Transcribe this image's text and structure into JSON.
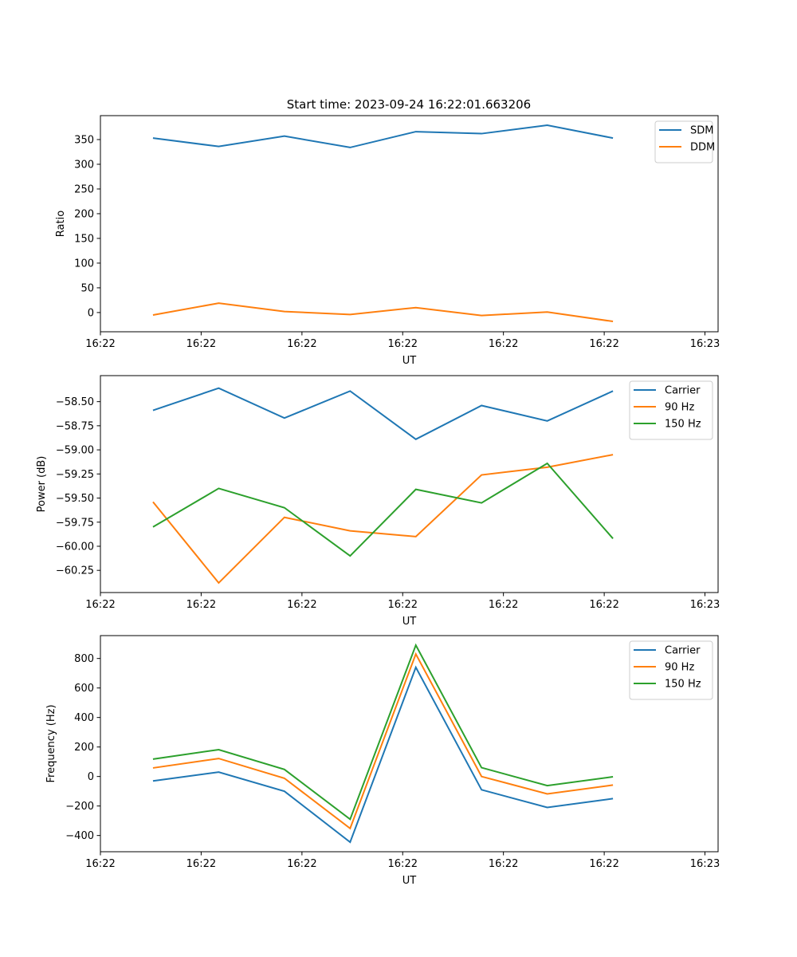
{
  "figure": {
    "title": "Start time: 2023-09-24 16:22:01.663206"
  },
  "chart_data": [
    {
      "type": "line",
      "title": "Start time: 2023-09-24 16:22:01.663206",
      "xlabel": "UT",
      "ylabel": "Ratio",
      "x": [
        1,
        2,
        3,
        4,
        5,
        6,
        7,
        8
      ],
      "xlim": [
        0.2,
        9.6
      ],
      "xticks": [
        0.2,
        1.733,
        3.267,
        4.8,
        6.333,
        7.867,
        9.4
      ],
      "xtick_labels": [
        "16:22",
        "16:22",
        "16:22",
        "16:22",
        "16:22",
        "16:22",
        "16:23"
      ],
      "ylim": [
        -38.9,
        398.4
      ],
      "yticks": [
        0,
        50,
        100,
        150,
        200,
        250,
        300,
        350
      ],
      "ytick_labels": [
        "0",
        "50",
        "100",
        "150",
        "200",
        "250",
        "300",
        "350"
      ],
      "legend": "top-right",
      "series": [
        {
          "name": "SDM",
          "color": "#1f77b4",
          "values": [
            353,
            336,
            357,
            334,
            366,
            362,
            379,
            353
          ]
        },
        {
          "name": "DDM",
          "color": "#ff7f0e",
          "values": [
            -5,
            19,
            2,
            -4,
            10,
            -6,
            1,
            -18
          ]
        }
      ]
    },
    {
      "type": "line",
      "title": "",
      "xlabel": "UT",
      "ylabel": "Power (dB)",
      "x": [
        1,
        2,
        3,
        4,
        5,
        6,
        7,
        8
      ],
      "xlim": [
        0.2,
        9.6
      ],
      "xticks": [
        0.2,
        1.733,
        3.267,
        4.8,
        6.333,
        7.867,
        9.4
      ],
      "xtick_labels": [
        "16:22",
        "16:22",
        "16:22",
        "16:22",
        "16:22",
        "16:22",
        "16:23"
      ],
      "ylim": [
        -60.48,
        -58.23
      ],
      "yticks": [
        -60.25,
        -60.0,
        -59.75,
        -59.5,
        -59.25,
        -59.0,
        -58.75,
        -58.5
      ],
      "ytick_labels": [
        "−60.25",
        "−60.00",
        "−59.75",
        "−59.50",
        "−59.25",
        "−59.00",
        "−58.75",
        "−58.50"
      ],
      "legend": "top-right",
      "series": [
        {
          "name": "Carrier",
          "color": "#1f77b4",
          "values": [
            -58.59,
            -58.36,
            -58.67,
            -58.39,
            -58.89,
            -58.54,
            -58.7,
            -58.39
          ]
        },
        {
          "name": "90 Hz",
          "color": "#ff7f0e",
          "values": [
            -59.54,
            -60.38,
            -59.7,
            -59.84,
            -59.9,
            -59.26,
            -59.18,
            -59.05
          ]
        },
        {
          "name": "150 Hz",
          "color": "#2ca02c",
          "values": [
            -59.8,
            -59.4,
            -59.6,
            -60.1,
            -59.41,
            -59.55,
            -59.14,
            -59.92
          ]
        }
      ]
    },
    {
      "type": "line",
      "title": "",
      "xlabel": "UT",
      "ylabel": "Frequency (Hz)",
      "x": [
        1,
        2,
        3,
        4,
        5,
        6,
        7,
        8
      ],
      "xlim": [
        0.2,
        9.6
      ],
      "xticks": [
        0.2,
        1.733,
        3.267,
        4.8,
        6.333,
        7.867,
        9.4
      ],
      "xtick_labels": [
        "16:22",
        "16:22",
        "16:22",
        "16:22",
        "16:22",
        "16:22",
        "16:23"
      ],
      "ylim": [
        -510,
        955
      ],
      "yticks": [
        -400,
        -200,
        0,
        200,
        400,
        600,
        800
      ],
      "ytick_labels": [
        "−400",
        "−200",
        "0",
        "200",
        "400",
        "600",
        "800"
      ],
      "legend": "top-right",
      "series": [
        {
          "name": "Carrier",
          "color": "#1f77b4",
          "values": [
            -30,
            30,
            -100,
            -445,
            740,
            -90,
            -210,
            -150
          ]
        },
        {
          "name": "90 Hz",
          "color": "#ff7f0e",
          "values": [
            58,
            122,
            -12,
            -352,
            830,
            0,
            -118,
            -58
          ]
        },
        {
          "name": "150 Hz",
          "color": "#2ca02c",
          "values": [
            118,
            182,
            48,
            -290,
            890,
            60,
            -62,
            -2
          ]
        }
      ]
    }
  ]
}
